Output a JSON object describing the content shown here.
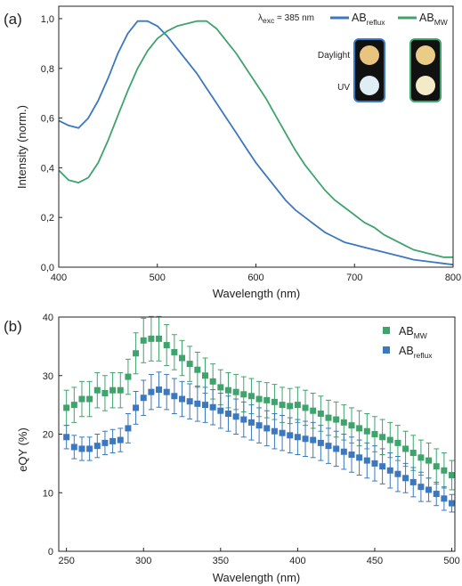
{
  "colors": {
    "reflux": "#3b78bf",
    "mw": "#3fa36c",
    "axis": "#222222"
  },
  "chart_data": [
    {
      "panel_label": "(a)",
      "type": "line",
      "xlabel": "Wavelength (nm)",
      "ylabel": "Intensity (norm.)",
      "xlim": [
        400,
        800
      ],
      "ylim": [
        0,
        1.05
      ],
      "x_ticks": [
        400,
        500,
        600,
        700,
        800
      ],
      "y_ticks": [
        "0,0",
        "0,2",
        "0,4",
        "0,6",
        "0,8",
        "1,0"
      ],
      "y_tick_values": [
        0,
        0.2,
        0.4,
        0.6,
        0.8,
        1.0
      ],
      "excitation_label": {
        "main": "λ",
        "sub": "exc",
        "suffix": " = 385 nm"
      },
      "legend_position": "top-right",
      "series": [
        {
          "name": "AB",
          "name_sub": "reflux",
          "color": "#3b78bf",
          "x": [
            400,
            410,
            420,
            430,
            440,
            450,
            460,
            470,
            480,
            490,
            500,
            510,
            520,
            530,
            540,
            550,
            560,
            570,
            580,
            590,
            600,
            610,
            620,
            630,
            640,
            650,
            660,
            670,
            680,
            690,
            700,
            710,
            720,
            730,
            740,
            750,
            760,
            770,
            780,
            790,
            800
          ],
          "y": [
            0.59,
            0.57,
            0.56,
            0.6,
            0.67,
            0.76,
            0.86,
            0.94,
            0.99,
            0.99,
            0.97,
            0.93,
            0.88,
            0.83,
            0.78,
            0.72,
            0.66,
            0.6,
            0.54,
            0.48,
            0.42,
            0.37,
            0.32,
            0.27,
            0.23,
            0.2,
            0.17,
            0.14,
            0.12,
            0.1,
            0.09,
            0.08,
            0.07,
            0.06,
            0.05,
            0.04,
            0.03,
            0.025,
            0.02,
            0.015,
            0.01
          ]
        },
        {
          "name": "AB",
          "name_sub": "MW",
          "color": "#3fa36c",
          "x": [
            400,
            410,
            420,
            430,
            440,
            450,
            460,
            470,
            480,
            490,
            500,
            510,
            520,
            530,
            540,
            550,
            560,
            570,
            580,
            590,
            600,
            610,
            620,
            630,
            640,
            650,
            660,
            670,
            680,
            690,
            700,
            710,
            720,
            730,
            740,
            750,
            760,
            770,
            780,
            790,
            800
          ],
          "y": [
            0.39,
            0.35,
            0.34,
            0.36,
            0.42,
            0.51,
            0.61,
            0.71,
            0.8,
            0.87,
            0.92,
            0.95,
            0.97,
            0.98,
            0.99,
            0.99,
            0.96,
            0.91,
            0.86,
            0.8,
            0.74,
            0.68,
            0.61,
            0.54,
            0.47,
            0.41,
            0.36,
            0.31,
            0.27,
            0.24,
            0.21,
            0.18,
            0.16,
            0.13,
            0.11,
            0.09,
            0.07,
            0.06,
            0.05,
            0.04,
            0.04
          ]
        }
      ],
      "inset": {
        "row_labels": [
          "Daylight",
          "UV"
        ],
        "tiles": [
          {
            "sample": "reflux",
            "daylight": "#e8c47e",
            "uv": "#dfeef4",
            "frame": "#3b78bf"
          },
          {
            "sample": "MW",
            "daylight": "#e9cd86",
            "uv": "#f3ebc8",
            "frame": "#3fa36c"
          }
        ]
      }
    },
    {
      "panel_label": "(b)",
      "type": "scatter",
      "xlabel": "Wavelength (nm)",
      "ylabel": "eQY (%)",
      "xlim": [
        245,
        502
      ],
      "ylim": [
        0,
        40
      ],
      "x_ticks": [
        250,
        300,
        350,
        400,
        450,
        500
      ],
      "y_ticks": [
        0,
        10,
        20,
        30,
        40
      ],
      "legend_position": "top-right",
      "x": [
        250,
        255,
        260,
        265,
        270,
        275,
        280,
        285,
        290,
        295,
        300,
        305,
        310,
        315,
        320,
        325,
        330,
        335,
        340,
        345,
        350,
        355,
        360,
        365,
        370,
        375,
        380,
        385,
        390,
        395,
        400,
        405,
        410,
        415,
        420,
        425,
        430,
        435,
        440,
        445,
        450,
        455,
        460,
        465,
        470,
        475,
        480,
        485,
        490,
        495,
        500
      ],
      "series": [
        {
          "name": "AB",
          "name_sub": "MW",
          "color": "#3fa36c",
          "values": [
            24.5,
            25.0,
            26.0,
            26.0,
            27.5,
            27.0,
            27.5,
            27.5,
            29.8,
            33.8,
            36.0,
            36.3,
            36.3,
            35.2,
            34.0,
            33.0,
            32.0,
            31.0,
            30.0,
            29.0,
            28.0,
            27.5,
            27.2,
            26.8,
            26.5,
            26.0,
            25.8,
            25.5,
            25.0,
            24.8,
            25.0,
            24.5,
            24.0,
            23.5,
            22.8,
            22.5,
            22.0,
            21.5,
            21.0,
            20.5,
            20.0,
            19.5,
            19.0,
            18.5,
            17.5,
            16.8,
            16.0,
            15.5,
            14.5,
            13.8,
            13.0
          ],
          "errors": [
            3,
            3,
            3,
            3,
            3,
            3,
            3,
            3,
            3,
            3.5,
            3.8,
            3.8,
            3.8,
            3.5,
            3,
            3,
            3,
            3,
            3,
            3,
            3,
            3,
            3,
            3,
            3,
            3,
            3,
            3,
            3,
            3,
            3,
            3,
            3,
            3,
            3,
            3,
            3,
            3,
            3,
            3,
            3,
            3,
            3,
            3,
            3,
            3,
            3,
            3,
            3,
            3,
            2.5
          ]
        },
        {
          "name": "AB",
          "name_sub": "reflux",
          "color": "#3b78bf",
          "values": [
            19.5,
            17.8,
            17.5,
            17.5,
            18.0,
            18.5,
            18.8,
            19.0,
            21.0,
            24.5,
            26.2,
            27.2,
            27.6,
            27.2,
            26.5,
            26.0,
            25.6,
            25.2,
            25.0,
            24.6,
            24.0,
            23.5,
            23.0,
            22.5,
            22.0,
            21.5,
            21.0,
            20.5,
            20.2,
            19.8,
            19.5,
            19.2,
            19.0,
            18.5,
            18.0,
            17.5,
            17.0,
            16.5,
            16.0,
            15.5,
            15.0,
            14.5,
            13.8,
            13.2,
            12.5,
            11.8,
            11.0,
            10.5,
            9.8,
            9.0,
            8.2
          ],
          "errors": [
            2,
            2,
            2,
            2,
            2,
            2,
            2,
            2,
            2.5,
            2.8,
            3,
            3,
            3,
            3,
            3,
            3,
            3,
            3,
            3,
            3,
            3,
            3,
            3,
            3,
            3,
            3,
            3,
            3,
            3,
            3,
            3,
            3,
            3,
            3,
            3,
            3,
            3,
            3,
            3,
            3,
            3,
            3,
            3,
            3,
            2.5,
            2.5,
            2.5,
            2,
            2,
            2,
            1.5
          ]
        }
      ]
    }
  ]
}
